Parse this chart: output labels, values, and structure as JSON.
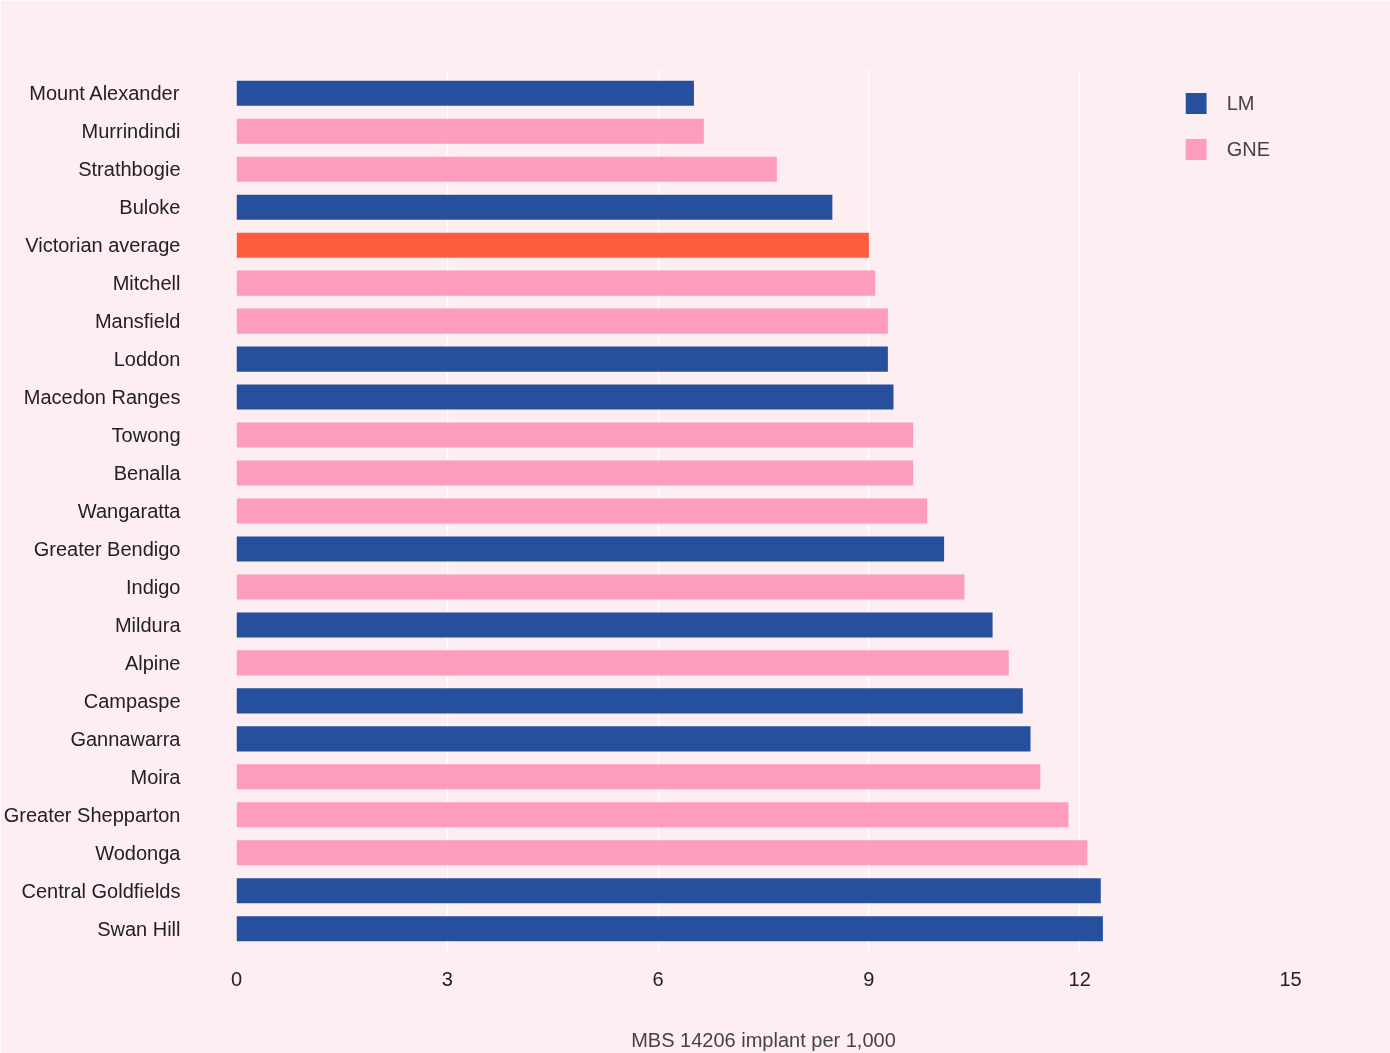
{
  "chart_data": {
    "type": "bar",
    "orientation": "horizontal",
    "xlabel": "MBS 14206 implant per 1,000",
    "categories": [
      "Mount Alexander",
      "Murrindindi",
      "Strathbogie",
      "Buloke",
      "Victorian average",
      "Mitchell",
      "Mansfield",
      "Loddon",
      "Macedon Ranges",
      "Towong",
      "Benalla",
      "Wangaratta",
      "Greater Bendigo",
      "Indigo",
      "Mildura",
      "Alpine",
      "Campaspe",
      "Gannawarra",
      "Moira",
      "Greater Shepparton",
      "Wodonga",
      "Central Goldfields",
      "Swan Hill"
    ],
    "series": [
      {
        "name": "LM",
        "color": "#264f9e",
        "values": [
          6.51,
          null,
          null,
          8.48,
          null,
          null,
          null,
          9.27,
          9.35,
          null,
          null,
          null,
          10.07,
          null,
          10.76,
          null,
          11.19,
          11.3,
          null,
          null,
          null,
          12.3,
          12.33
        ]
      },
      {
        "name": "GNE",
        "color": "#fd9cbb",
        "values": [
          null,
          6.65,
          7.69,
          null,
          null,
          9.09,
          9.27,
          null,
          null,
          9.63,
          9.63,
          9.83,
          null,
          10.36,
          null,
          10.99,
          null,
          null,
          11.44,
          11.84,
          12.11,
          null,
          null
        ]
      },
      {
        "color": "#ff5b3f",
        "values": [
          null,
          null,
          null,
          null,
          9.0,
          null,
          null,
          null,
          null,
          null,
          null,
          null,
          null,
          null,
          null,
          null,
          null,
          null,
          null,
          null,
          null,
          null,
          null
        ]
      }
    ],
    "xlim": [
      0,
      15
    ],
    "xticks": [
      0,
      3,
      6,
      9,
      12,
      15
    ],
    "grid": "x",
    "legend": "top right"
  }
}
